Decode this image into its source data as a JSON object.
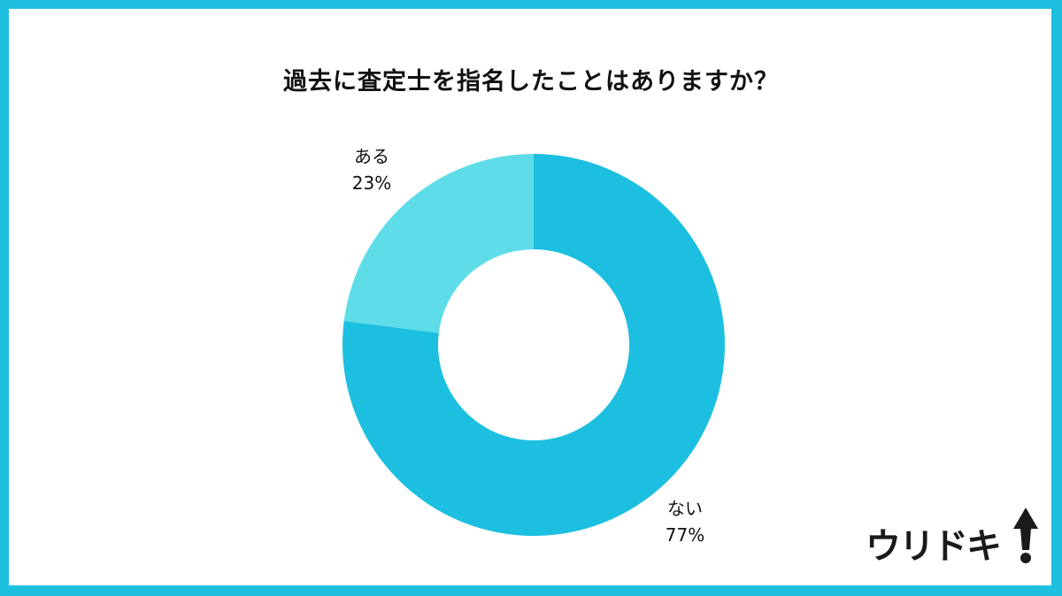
{
  "chart_data": {
    "type": "pie",
    "donut": true,
    "title": "過去に査定士を指名したことはありますか？",
    "slices": [
      {
        "label": "ない",
        "value": 77,
        "display": "77%",
        "color": "#1dbfe0"
      },
      {
        "label": "ある",
        "value": 23,
        "display": "23%",
        "color": "#5edde8"
      }
    ],
    "start_angle": "top",
    "direction": "clockwise",
    "legend": "none"
  },
  "logo": {
    "text": "ウリドキ"
  },
  "colors": {
    "border": "#1ec0e0",
    "background": "#ffffff"
  }
}
